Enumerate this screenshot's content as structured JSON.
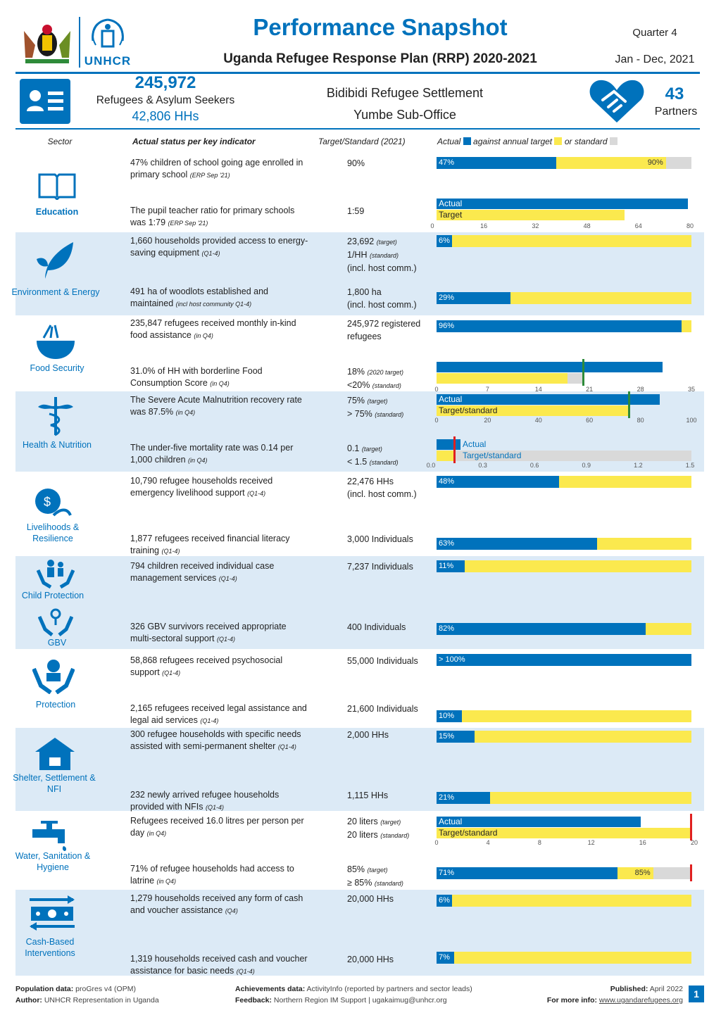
{
  "header": {
    "title": "Performance Snapshot",
    "subtitle": "Uganda Refugee Response Plan (RRP) 2020-2021",
    "quarter": "Quarter 4",
    "period": "Jan - Dec, 2021",
    "unhcr_logo_text": "UNHCR"
  },
  "stats": {
    "refugees": "245,972",
    "refugees_label": "Refugees & Asylum Seekers",
    "hhs": "42,806 HHs",
    "settlement": "Bidibidi Refugee Settlement",
    "suboffice": "Yumbe Sub-Office",
    "partners_num": "43",
    "partners_label": "Partners"
  },
  "table_header": {
    "sector": "Sector",
    "actual_status": "Actual status per key indicator",
    "target": "Target/Standard (2021)",
    "legend_actual": "Actual",
    "legend_against": "against annual target",
    "legend_or": "or standard"
  },
  "sectors": {
    "education": "Education",
    "environment": "Environment & Energy",
    "food": "Food Security",
    "health": "Health & Nutrition",
    "livelihoods": "Livelihoods & Resilience",
    "child": "Child Protection",
    "gbv": "GBV",
    "protection": "Protection",
    "shelter": "Shelter, Settlement & NFI",
    "wash": "Water, Sanitation & Hygiene",
    "cash": "Cash-Based Interventions"
  },
  "rows": [
    {
      "ind": "47% children of school going age enrolled in primary school",
      "src": "(ERP Sep '21)",
      "tgt": "90%",
      "pct": 47,
      "label": "47%",
      "tlabel": "90%"
    },
    {
      "ind": "The pupil teacher ratio for primary schools was 1:79",
      "src": "(ERP Sep '21)",
      "tgt": "1:59"
    },
    {
      "ind": "1,660 households provided access to energy-saving equipment",
      "src": "(Q1-4)",
      "tgt1": "23,692",
      "tgt1s": "(target)",
      "tgt2": "1/HH",
      "tgt2s": "(standard)",
      "tgt3": "(incl. host comm.)",
      "pct": 6,
      "label": "6%"
    },
    {
      "ind": "491 ha of woodlots established and maintained",
      "src": "(incl host community Q1-4)",
      "tgt1": "1,800 ha",
      "tgt3": "(incl. host comm.)",
      "pct": 29,
      "label": "29%"
    },
    {
      "ind": "235,847 refugees received monthly in-kind food assistance",
      "src": "(in Q4)",
      "tgt1": "245,972 registered refugees",
      "pct": 96,
      "label": "96%"
    },
    {
      "ind": "31.0% of HH with borderline Food Consumption Score",
      "src": "(in Q4)",
      "tgt1": "18%",
      "tgt1s": "(2020 target)",
      "tgt2": "<20%",
      "tgt2s": "(standard)"
    },
    {
      "ind": "The Severe Acute Malnutrition recovery rate was 87.5%",
      "src": "(in Q4)",
      "tgt1": "75%",
      "tgt1s": "(target)",
      "tgt2": "> 75%",
      "tgt2s": "(standard)"
    },
    {
      "ind": "The under-five mortality rate was 0.14 per 1,000 children",
      "src": "(in Q4)",
      "tgt1": "0.1",
      "tgt1s": "(target)",
      "tgt2": "< 1.5",
      "tgt2s": "(standard)"
    },
    {
      "ind": "10,790 refugee households received emergency livelihood support",
      "src": "(Q1-4)",
      "tgt1": "22,476 HHs",
      "tgt3": "(incl. host comm.)",
      "pct": 48,
      "label": "48%"
    },
    {
      "ind": "1,877 refugees received financial literacy training",
      "src": "(Q1-4)",
      "tgt1": "3,000 Individuals",
      "pct": 63,
      "label": "63%"
    },
    {
      "ind": "794 children received individual case management services",
      "src": "(Q1-4)",
      "tgt1": "7,237 Individuals",
      "pct": 11,
      "label": "11%"
    },
    {
      "ind": "326 GBV survivors received appropriate multi-sectoral support",
      "src": "(Q1-4)",
      "tgt1": "400 Individuals",
      "pct": 82,
      "label": "82%"
    },
    {
      "ind": "58,868 refugees received psychosocial support",
      "src": "(Q1-4)",
      "tgt1": "55,000 Individuals",
      "pct": 100,
      "label": "> 100%"
    },
    {
      "ind": "2,165 refugees received legal assistance and legal aid services",
      "src": "(Q1-4)",
      "tgt1": "21,600 Individuals",
      "pct": 10,
      "label": "10%"
    },
    {
      "ind": "300 refugee households with specific needs assisted with semi-permanent shelter",
      "src": "(Q1-4)",
      "tgt1": "2,000 HHs",
      "pct": 15,
      "label": "15%"
    },
    {
      "ind": "232 newly arrived refugee households provided with NFIs",
      "src": "(Q1-4)",
      "tgt1": "1,115 HHs",
      "pct": 21,
      "label": "21%"
    },
    {
      "ind": "Refugees received 16.0 litres per person per day",
      "src": "(in Q4)",
      "tgt1": "20 liters",
      "tgt1s": "(target)",
      "tgt2": "20 liters",
      "tgt2s": "(standard)"
    },
    {
      "ind": "71% of refugee households had access to latrine",
      "src": "(in Q4)",
      "tgt1": "85%",
      "tgt1s": "(target)",
      "tgt2": "≥ 85%",
      "tgt2s": "(standard)",
      "pct": 71,
      "label": "71%",
      "tlabel": "85%"
    },
    {
      "ind": "1,279 households received any form of cash and voucher assistance",
      "src": "(Q4)",
      "tgt1": "20,000 HHs",
      "pct": 6,
      "label": "6%"
    },
    {
      "ind": "1,319 households received cash and voucher assistance for basic needs",
      "src": "(Q1-4)",
      "tgt1": "20,000 HHs",
      "pct": 7,
      "label": "7%"
    }
  ],
  "mini": {
    "actual": "Actual",
    "target": "Target",
    "target_standard": "Target/standard",
    "ptr_ticks": [
      "0",
      "16",
      "32",
      "48",
      "64",
      "80"
    ],
    "fcs_ticks": [
      "0",
      "7",
      "14",
      "21",
      "28",
      "35"
    ],
    "sam_ticks": [
      "0",
      "20",
      "40",
      "60",
      "80",
      "100"
    ],
    "u5_ticks": [
      "0.0",
      "0.3",
      "0.6",
      "0.9",
      "1.2",
      "1.5"
    ],
    "water_ticks": [
      "0",
      "4",
      "8",
      "12",
      "16",
      "20"
    ]
  },
  "footer": {
    "pop_label": "Population data:",
    "pop_value": "proGres v4 (OPM)",
    "author_label": "Author:",
    "author_value": "UNHCR Representation in Uganda",
    "ach_label": "Achievements data:",
    "ach_value": "ActivityInfo (reported by partners and sector leads)",
    "fb_label": "Feedback:",
    "fb_value": "Northern Region IM Support | ugakaimug@unhcr.org",
    "pub_label": "Published:",
    "pub_value": "April 2022",
    "info_label": "For more info:",
    "info_value": "www.ugandarefugees.org",
    "page": "1"
  },
  "colors": {
    "blue": "#0072bc",
    "yellow": "#fbe94e",
    "grey": "#d9d9d9",
    "band": "#dceaf6",
    "green": "#2e8b3a",
    "red": "#e02020"
  }
}
